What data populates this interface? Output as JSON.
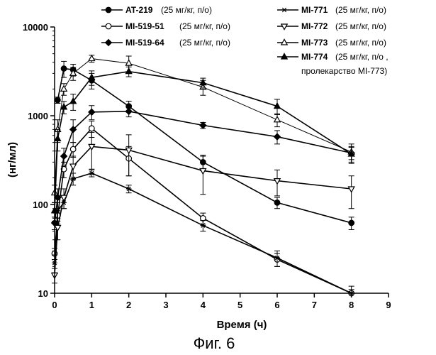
{
  "figure": {
    "caption": "Фиг. 6"
  },
  "chart_data": {
    "type": "line",
    "title": "",
    "xlabel": "Время (ч)",
    "ylabel": "(нг/мл)",
    "xlim": [
      0,
      9
    ],
    "ylim": [
      10,
      10000
    ],
    "yscale": "log",
    "grid": false,
    "legend_position": "top",
    "x_ticks": [
      0,
      1,
      2,
      3,
      4,
      5,
      6,
      7,
      8,
      9
    ],
    "x_tick_labels": [
      "0",
      "1",
      "2",
      "3",
      "4",
      "5",
      "6",
      "7",
      "8",
      "9"
    ],
    "y_ticks": [
      10,
      100,
      1000,
      10000
    ],
    "y_tick_labels": [
      "10",
      "100",
      "1000",
      "10000"
    ],
    "series": [
      {
        "name": "AT-219",
        "dose": "(25 мг/кг, п/о)",
        "marker": "filled-circle",
        "line_width": 1.6,
        "x": [
          0.083,
          0.25,
          0.5,
          1,
          2,
          4,
          6,
          8
        ],
        "y": [
          1500,
          3400,
          3300,
          2500,
          1280,
          300,
          105,
          62
        ],
        "err": [
          120,
          700,
          500,
          500,
          180,
          60,
          15,
          10
        ]
      },
      {
        "name": "MI-519-51",
        "dose": "(25 мг/кг, п/о)",
        "marker": "open-circle",
        "line_width": 1.6,
        "x": [
          0,
          0.083,
          0.25,
          0.5,
          1,
          2,
          4,
          6,
          8
        ],
        "y": [
          28,
          75,
          250,
          420,
          720,
          330,
          70,
          24,
          10
        ],
        "err": [
          4,
          15,
          50,
          80,
          150,
          120,
          10,
          4,
          1
        ]
      },
      {
        "name": "MI-519-64",
        "dose": "(25 мг/кг, п/о)",
        "marker": "filled-diamond",
        "line_width": 1.6,
        "x": [
          0,
          0.083,
          0.25,
          0.5,
          1,
          2,
          4,
          6,
          8
        ],
        "y": [
          62,
          120,
          350,
          700,
          1100,
          1120,
          780,
          580,
          380
        ],
        "err": [
          10,
          30,
          80,
          200,
          200,
          150,
          60,
          100,
          60
        ]
      },
      {
        "name": "MI-771",
        "dose": "(25 мг/кг, п/о)",
        "marker": "asterisk",
        "line_width": 1.6,
        "x": [
          0,
          0.083,
          0.25,
          0.5,
          1,
          2,
          4,
          6,
          8
        ],
        "y": [
          22,
          85,
          105,
          195,
          225,
          150,
          58,
          25,
          10
        ],
        "err": [
          5,
          20,
          15,
          30,
          20,
          15,
          8,
          5,
          2
        ]
      },
      {
        "name": "MI-772",
        "dose": "(25 мг/кг, п/о)",
        "marker": "open-triangle-down",
        "line_width": 1.6,
        "x": [
          0,
          0.083,
          0.25,
          0.5,
          1,
          2,
          4,
          6,
          8
        ],
        "y": [
          16,
          55,
          120,
          270,
          450,
          410,
          240,
          185,
          150
        ],
        "err": [
          3,
          15,
          30,
          80,
          200,
          200,
          110,
          60,
          60
        ]
      },
      {
        "name": "MI-773",
        "dose": "(25 мг/кг, п/о)",
        "marker": "open-triangle-up",
        "line_width": 1.0,
        "x": [
          0,
          0.083,
          0.25,
          0.5,
          1,
          2,
          4,
          6,
          8
        ],
        "y": [
          135,
          700,
          2000,
          3000,
          4400,
          3900,
          2100,
          900,
          390
        ],
        "err": [
          30,
          200,
          300,
          500,
          400,
          800,
          400,
          150,
          90
        ]
      },
      {
        "name": "MI-774",
        "dose": "(25 мг/кг, п/о ,",
        "dose_line2": "пролекарство MI-773)",
        "marker": "filled-triangle-up",
        "line_width": 1.6,
        "x": [
          0,
          0.083,
          0.25,
          0.5,
          1,
          2,
          4,
          6,
          8
        ],
        "y": [
          85,
          550,
          1250,
          1450,
          2700,
          3150,
          2350,
          1280,
          370
        ],
        "err": [
          20,
          150,
          200,
          300,
          500,
          400,
          300,
          250,
          80
        ]
      }
    ]
  }
}
